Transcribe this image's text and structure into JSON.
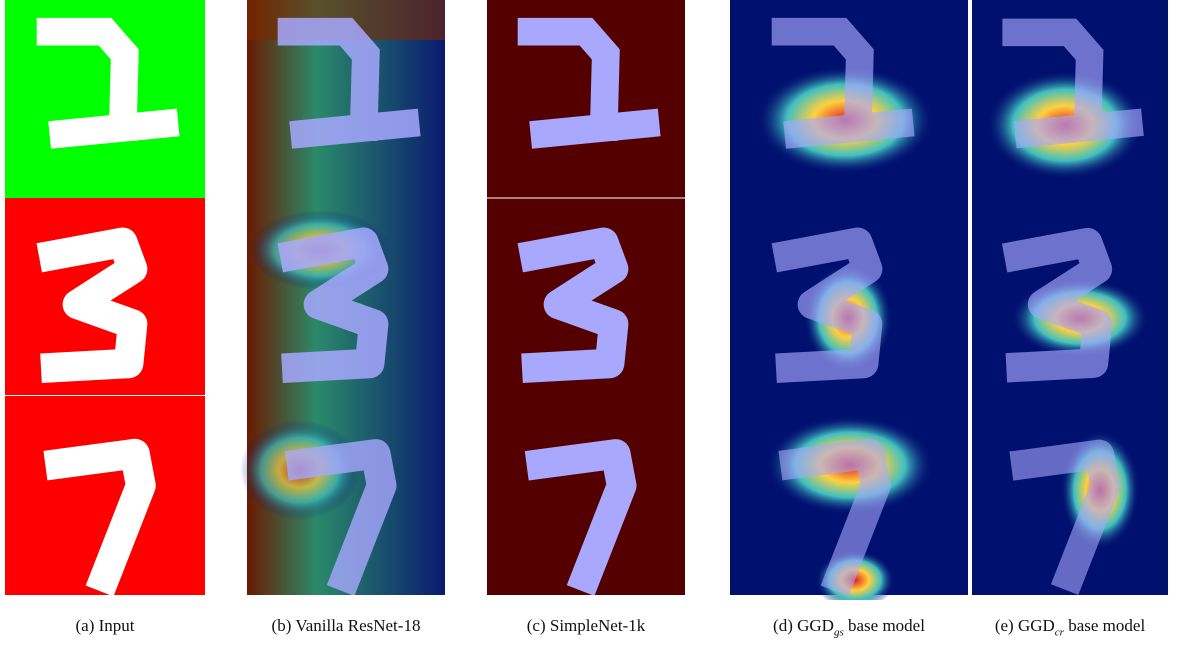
{
  "captions": [
    {
      "tag": "(a)",
      "name": "Input"
    },
    {
      "tag": "(b)",
      "name": "Vanilla ResNet-18"
    },
    {
      "tag": "(c)",
      "name": "SimpleNet-1k"
    },
    {
      "tag": "(d)",
      "name": "GGD",
      "sub": "gs",
      "suffix": "base model"
    },
    {
      "tag": "(e)",
      "name": "GGD",
      "sub": "cr",
      "suffix": "base model"
    }
  ]
}
